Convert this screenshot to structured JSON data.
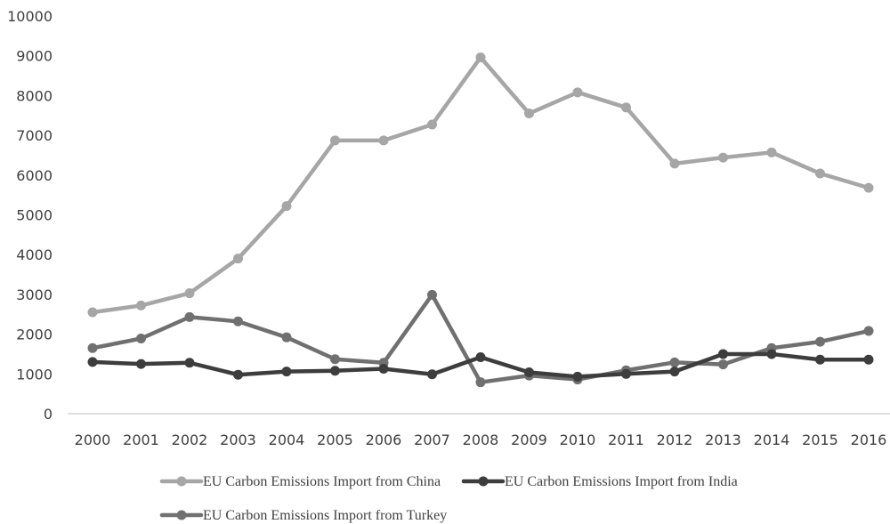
{
  "chart_data": {
    "type": "line",
    "title": "",
    "xlabel": "",
    "ylabel": "",
    "ylim": [
      0,
      10000
    ],
    "yticks": [
      0,
      1000,
      2000,
      3000,
      4000,
      5000,
      6000,
      7000,
      8000,
      9000,
      10000
    ],
    "grid": false,
    "legend_position": "bottom",
    "categories": [
      "2000",
      "2001",
      "2002",
      "2003",
      "2004",
      "2005",
      "2006",
      "2007",
      "2008",
      "2009",
      "2010",
      "2011",
      "2012",
      "2013",
      "2014",
      "2015",
      "2016"
    ],
    "series": [
      {
        "name": "EU Carbon Emissions Import from China",
        "color": "#a6a6a6",
        "values": [
          2550,
          2720,
          3030,
          3900,
          5220,
          6870,
          6870,
          7270,
          8960,
          7550,
          8080,
          7700,
          6290,
          6440,
          6570,
          6040,
          5680
        ]
      },
      {
        "name": "EU Carbon Emissions Import from India",
        "color": "#3d3d3d",
        "values": [
          1300,
          1250,
          1280,
          980,
          1060,
          1080,
          1130,
          990,
          1420,
          1040,
          930,
          1000,
          1060,
          1500,
          1500,
          1360,
          1360
        ]
      },
      {
        "name": "EU Carbon Emissions Import from Turkey",
        "color": "#707070",
        "values": [
          1650,
          1890,
          2430,
          2320,
          1920,
          1370,
          1280,
          2990,
          790,
          960,
          860,
          1090,
          1290,
          1240,
          1650,
          1810,
          2080
        ]
      }
    ]
  }
}
